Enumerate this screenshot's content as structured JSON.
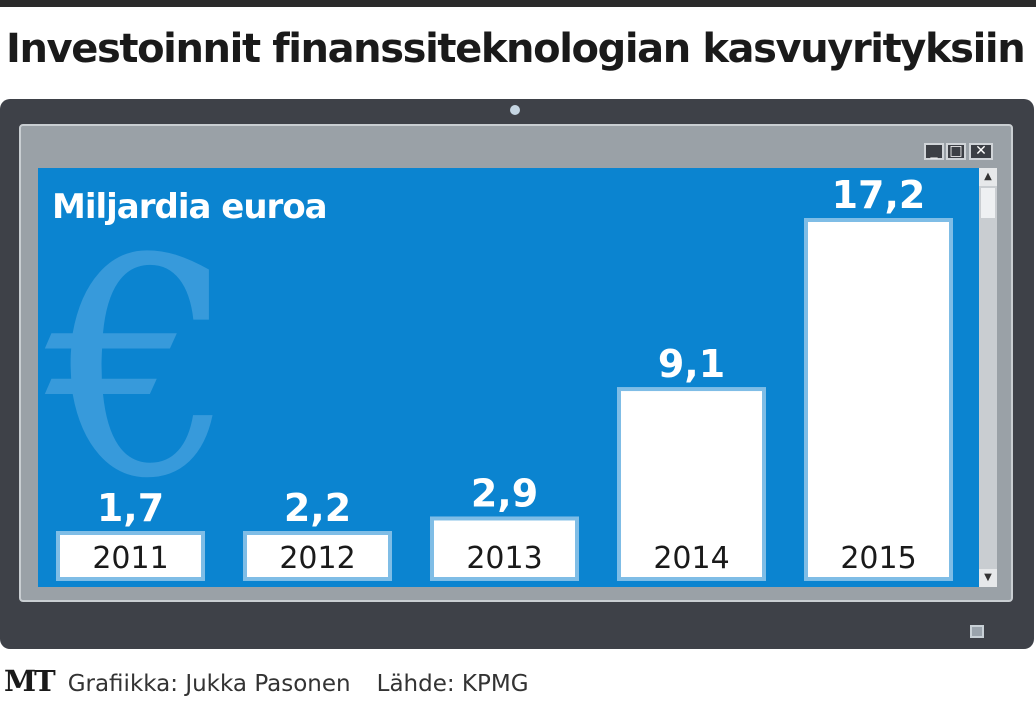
{
  "headline": "Investoinnit finanssiteknologian kasvuyrityksiin",
  "window_controls": [
    "minimize",
    "maximize",
    "close"
  ],
  "icons": [
    "euro-symbol-icon",
    "camera-icon",
    "power-button-icon",
    "scroll-up-arrow-icon",
    "scroll-down-arrow-icon"
  ],
  "colors": {
    "screen": "#0b84d0",
    "bar": "#ffffff",
    "bar_outline": "#7fbde6",
    "frame": "#3e4148"
  },
  "chart_data": {
    "type": "bar",
    "unit_label": "Miljardia euroa",
    "categories": [
      "2011",
      "2012",
      "2013",
      "2014",
      "2015"
    ],
    "values": [
      1.7,
      2.2,
      2.9,
      9.1,
      17.2
    ],
    "value_labels": [
      "1,7",
      "2,2",
      "2,9",
      "9,1",
      "17,2"
    ],
    "xlabel": "",
    "ylabel": "",
    "ylim": [
      0,
      17.2
    ],
    "grid": false,
    "legend": "none"
  },
  "footer": {
    "logo": "MT",
    "credit": "Grafiikka: Jukka Pasonen",
    "source": "Lähde: KPMG"
  }
}
